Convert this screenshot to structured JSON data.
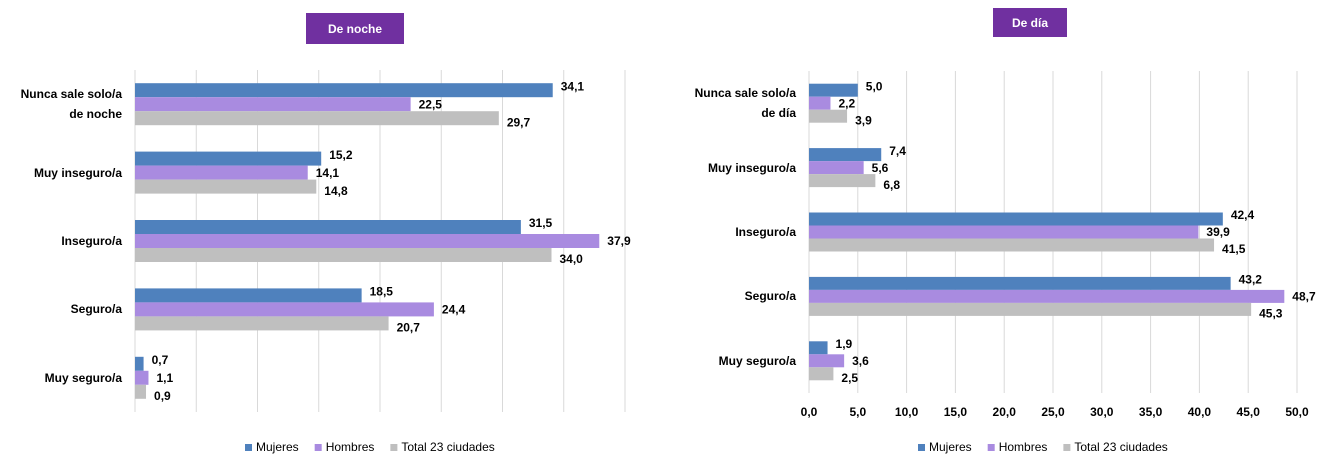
{
  "chart_data": [
    {
      "type": "bar",
      "orientation": "horizontal",
      "title": "De noche",
      "categories": [
        "Nunca sale solo/a\nde noche",
        "Muy inseguro/a",
        "Inseguro/a",
        "Seguro/a",
        "Muy seguro/a"
      ],
      "series": [
        {
          "name": "Mujeres",
          "color": "#4f81bd",
          "values": [
            34.1,
            15.2,
            31.5,
            18.5,
            0.7
          ],
          "value_labels": [
            "34,1",
            "15,2",
            "31,5",
            "18,5",
            "0,7"
          ]
        },
        {
          "name": "Hombres",
          "color": "#a98be0",
          "values": [
            22.5,
            14.1,
            37.9,
            24.4,
            1.1
          ],
          "value_labels": [
            "22,5",
            "14,1",
            "37,9",
            "24,4",
            "1,1"
          ]
        },
        {
          "name": "Total 23 ciudades",
          "color": "#bfbfbf",
          "values": [
            29.7,
            14.8,
            34.0,
            20.7,
            0.9
          ],
          "value_labels": [
            "29,7",
            "14,8",
            "34,0",
            "20,7",
            "0,9"
          ]
        }
      ],
      "xlim": [
        0,
        40
      ],
      "xticks": [
        0,
        5,
        10,
        15,
        20,
        25,
        30,
        35,
        40
      ],
      "xtick_labels_visible": false,
      "grid": true,
      "legend": "bottom"
    },
    {
      "type": "bar",
      "orientation": "horizontal",
      "title": "De día",
      "categories": [
        "Nunca sale solo/a\nde día",
        "Muy inseguro/a",
        "Inseguro/a",
        "Seguro/a",
        "Muy seguro/a"
      ],
      "series": [
        {
          "name": "Mujeres",
          "color": "#4f81bd",
          "values": [
            5.0,
            7.4,
            42.4,
            43.2,
            1.9
          ],
          "value_labels": [
            "5,0",
            "7,4",
            "42,4",
            "43,2",
            "1,9"
          ]
        },
        {
          "name": "Hombres",
          "color": "#a98be0",
          "values": [
            2.2,
            5.6,
            39.9,
            48.7,
            3.6
          ],
          "value_labels": [
            "2,2",
            "5,6",
            "39,9",
            "48,7",
            "3,6"
          ]
        },
        {
          "name": "Total 23 ciudades",
          "color": "#bfbfbf",
          "values": [
            3.9,
            6.8,
            41.5,
            45.3,
            2.5
          ],
          "value_labels": [
            "3,9",
            "6,8",
            "41,5",
            "45,3",
            "2,5"
          ]
        }
      ],
      "xlim": [
        0,
        50
      ],
      "xticks": [
        {
          "value": 0,
          "label": "0,0"
        },
        {
          "value": 5,
          "label": "5,0"
        },
        {
          "value": 10,
          "label": "10,0"
        },
        {
          "value": 15,
          "label": "15,0"
        },
        {
          "value": 20,
          "label": "20,0"
        },
        {
          "value": 25,
          "label": "25,0"
        },
        {
          "value": 30,
          "label": "30,0"
        },
        {
          "value": 35,
          "label": "35,0"
        },
        {
          "value": 40,
          "label": "40,0"
        },
        {
          "value": 45,
          "label": "45,0"
        },
        {
          "value": 50,
          "label": "50,0"
        }
      ],
      "xtick_labels_visible": true,
      "grid": true,
      "legend": "bottom"
    }
  ]
}
